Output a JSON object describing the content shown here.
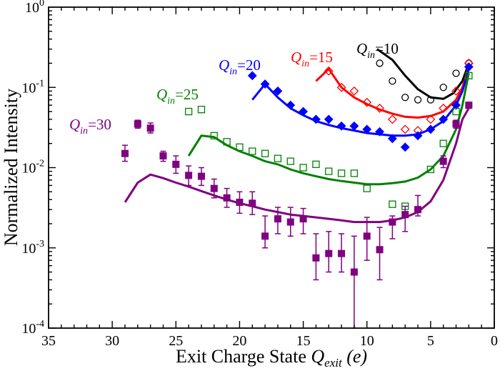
{
  "chart_data": {
    "type": "scatter",
    "xlabel": "Exit Charge State",
    "xlabel_symbol": "Q",
    "xlabel_subscript": "exit",
    "xlabel_unit": "(e)",
    "ylabel": "Normalized Intensity",
    "xlim": [
      35,
      0
    ],
    "ylim": [
      0.0001,
      1
    ],
    "yscale": "log",
    "x_ticks": [
      35,
      30,
      25,
      20,
      15,
      10,
      5,
      0
    ],
    "y_tick_labels": [
      {
        "value": 0.0001,
        "base": "10",
        "exp": "-4"
      },
      {
        "value": 0.001,
        "base": "10",
        "exp": "-3"
      },
      {
        "value": 0.01,
        "base": "10",
        "exp": "-2"
      },
      {
        "value": 0.1,
        "base": "10",
        "exp": "-1"
      },
      {
        "value": 1,
        "base": "10",
        "exp": "0"
      }
    ],
    "grid": false,
    "series": [
      {
        "name": "Q_in=10",
        "label_symbol": "Q",
        "label_sub": "in",
        "label_value": "=10",
        "color": "#000000",
        "marker": "open-circle",
        "points": [
          {
            "x": 9,
            "y": 0.2
          },
          {
            "x": 8,
            "y": 0.12
          },
          {
            "x": 7,
            "y": 0.075
          },
          {
            "x": 6,
            "y": 0.07
          },
          {
            "x": 5,
            "y": 0.07
          },
          {
            "x": 4,
            "y": 0.1
          },
          {
            "x": 3,
            "y": 0.15
          },
          {
            "x": 2,
            "y": 0.2
          }
        ],
        "curve": [
          {
            "x": 9.2,
            "y": 0.3
          },
          {
            "x": 8,
            "y": 0.22
          },
          {
            "x": 7,
            "y": 0.14
          },
          {
            "x": 6,
            "y": 0.095
          },
          {
            "x": 5,
            "y": 0.075
          },
          {
            "x": 4,
            "y": 0.072
          },
          {
            "x": 3.2,
            "y": 0.085
          },
          {
            "x": 2.5,
            "y": 0.12
          },
          {
            "x": 2,
            "y": 0.2
          }
        ]
      },
      {
        "name": "Q_in=15",
        "label_symbol": "Q",
        "label_sub": "in",
        "label_value": "=15",
        "color": "#ff0000",
        "marker": "open-diamond",
        "points": [
          {
            "x": 13,
            "y": 0.16
          },
          {
            "x": 12,
            "y": 0.1
          },
          {
            "x": 11,
            "y": 0.09
          },
          {
            "x": 10,
            "y": 0.065
          },
          {
            "x": 9,
            "y": 0.055
          },
          {
            "x": 8,
            "y": 0.04
          },
          {
            "x": 7,
            "y": 0.03
          },
          {
            "x": 6,
            "y": 0.029
          },
          {
            "x": 5,
            "y": 0.04
          },
          {
            "x": 4,
            "y": 0.055
          },
          {
            "x": 3,
            "y": 0.09
          },
          {
            "x": 2,
            "y": 0.2
          }
        ],
        "curve": [
          {
            "x": 14,
            "y": 0.12
          },
          {
            "x": 13,
            "y": 0.17
          },
          {
            "x": 12,
            "y": 0.1
          },
          {
            "x": 11,
            "y": 0.075
          },
          {
            "x": 10,
            "y": 0.062
          },
          {
            "x": 9,
            "y": 0.053
          },
          {
            "x": 8,
            "y": 0.047
          },
          {
            "x": 7,
            "y": 0.043
          },
          {
            "x": 6,
            "y": 0.042
          },
          {
            "x": 5,
            "y": 0.044
          },
          {
            "x": 4,
            "y": 0.05
          },
          {
            "x": 3,
            "y": 0.07
          },
          {
            "x": 2.5,
            "y": 0.1
          },
          {
            "x": 2,
            "y": 0.18
          }
        ]
      },
      {
        "name": "Q_in=20",
        "label_symbol": "Q",
        "label_sub": "in",
        "label_value": "=20",
        "color": "#0000ff",
        "marker": "filled-diamond",
        "points": [
          {
            "x": 19,
            "y": 0.14
          },
          {
            "x": 18,
            "y": 0.11
          },
          {
            "x": 17,
            "y": 0.09
          },
          {
            "x": 16,
            "y": 0.06
          },
          {
            "x": 15,
            "y": 0.05
          },
          {
            "x": 14,
            "y": 0.04
          },
          {
            "x": 13,
            "y": 0.04
          },
          {
            "x": 12,
            "y": 0.033
          },
          {
            "x": 11,
            "y": 0.033
          },
          {
            "x": 10,
            "y": 0.03
          },
          {
            "x": 9,
            "y": 0.028
          },
          {
            "x": 8,
            "y": 0.023
          },
          {
            "x": 7,
            "y": 0.018
          },
          {
            "x": 6,
            "y": 0.025
          },
          {
            "x": 5,
            "y": 0.03
          },
          {
            "x": 4,
            "y": 0.04
          },
          {
            "x": 3,
            "y": 0.06
          },
          {
            "x": 2,
            "y": 0.18
          }
        ],
        "curve": [
          {
            "x": 19,
            "y": 0.07
          },
          {
            "x": 18,
            "y": 0.11
          },
          {
            "x": 17,
            "y": 0.075
          },
          {
            "x": 16,
            "y": 0.055
          },
          {
            "x": 15,
            "y": 0.045
          },
          {
            "x": 14,
            "y": 0.038
          },
          {
            "x": 13,
            "y": 0.034
          },
          {
            "x": 12,
            "y": 0.031
          },
          {
            "x": 11,
            "y": 0.029
          },
          {
            "x": 10,
            "y": 0.027
          },
          {
            "x": 9,
            "y": 0.026
          },
          {
            "x": 8,
            "y": 0.025
          },
          {
            "x": 7,
            "y": 0.025
          },
          {
            "x": 6,
            "y": 0.026
          },
          {
            "x": 5,
            "y": 0.03
          },
          {
            "x": 4,
            "y": 0.038
          },
          {
            "x": 3,
            "y": 0.06
          },
          {
            "x": 2.5,
            "y": 0.09
          },
          {
            "x": 2,
            "y": 0.17
          }
        ]
      },
      {
        "name": "Q_in=25",
        "label_symbol": "Q",
        "label_sub": "in",
        "label_value": "=25",
        "color": "#008000",
        "marker": "open-square",
        "points": [
          {
            "x": 24,
            "y": 0.05
          },
          {
            "x": 23,
            "y": 0.053
          },
          {
            "x": 22,
            "y": 0.025
          },
          {
            "x": 21,
            "y": 0.021
          },
          {
            "x": 20,
            "y": 0.018
          },
          {
            "x": 19,
            "y": 0.016
          },
          {
            "x": 18,
            "y": 0.015
          },
          {
            "x": 17,
            "y": 0.013
          },
          {
            "x": 16,
            "y": 0.012
          },
          {
            "x": 15,
            "y": 0.01
          },
          {
            "x": 14,
            "y": 0.011
          },
          {
            "x": 13,
            "y": 0.009
          },
          {
            "x": 12,
            "y": 0.0085
          },
          {
            "x": 11,
            "y": 0.0085
          },
          {
            "x": 10,
            "y": 0.0055
          },
          {
            "x": 8,
            "y": 0.0035
          },
          {
            "x": 7,
            "y": 0.0033
          },
          {
            "x": 5,
            "y": 0.0095
          },
          {
            "x": 4,
            "y": 0.02
          },
          {
            "x": 3,
            "y": 0.05
          },
          {
            "x": 2,
            "y": 0.14
          }
        ],
        "curve": [
          {
            "x": 24,
            "y": 0.014
          },
          {
            "x": 23,
            "y": 0.025
          },
          {
            "x": 22,
            "y": 0.024
          },
          {
            "x": 21,
            "y": 0.019
          },
          {
            "x": 20,
            "y": 0.016
          },
          {
            "x": 19,
            "y": 0.014
          },
          {
            "x": 18,
            "y": 0.012
          },
          {
            "x": 17,
            "y": 0.011
          },
          {
            "x": 16,
            "y": 0.0095
          },
          {
            "x": 15,
            "y": 0.0085
          },
          {
            "x": 14,
            "y": 0.0078
          },
          {
            "x": 13,
            "y": 0.0072
          },
          {
            "x": 12,
            "y": 0.0068
          },
          {
            "x": 11,
            "y": 0.0065
          },
          {
            "x": 10,
            "y": 0.0062
          },
          {
            "x": 9,
            "y": 0.0062
          },
          {
            "x": 8,
            "y": 0.0064
          },
          {
            "x": 7,
            "y": 0.0067
          },
          {
            "x": 6,
            "y": 0.0075
          },
          {
            "x": 5,
            "y": 0.0095
          },
          {
            "x": 4,
            "y": 0.014
          },
          {
            "x": 3,
            "y": 0.03
          },
          {
            "x": 2.5,
            "y": 0.06
          },
          {
            "x": 2,
            "y": 0.15
          }
        ]
      },
      {
        "name": "Q_in=30",
        "label_symbol": "Q",
        "label_sub": "in",
        "label_value": "=30",
        "color": "#800080",
        "marker": "filled-square",
        "points": [
          {
            "x": 29,
            "y": 0.015,
            "lo": 0.012,
            "hi": 0.019
          },
          {
            "x": 28,
            "y": 0.035,
            "lo": 0.031,
            "hi": 0.039
          },
          {
            "x": 27,
            "y": 0.031,
            "lo": 0.027,
            "hi": 0.036
          },
          {
            "x": 26,
            "y": 0.014,
            "lo": 0.012,
            "hi": 0.016
          },
          {
            "x": 25,
            "y": 0.011,
            "lo": 0.0085,
            "hi": 0.014
          },
          {
            "x": 24,
            "y": 0.008,
            "lo": 0.006,
            "hi": 0.0105
          },
          {
            "x": 23,
            "y": 0.0078,
            "lo": 0.006,
            "hi": 0.01
          },
          {
            "x": 22,
            "y": 0.0055,
            "lo": 0.0042,
            "hi": 0.0072
          },
          {
            "x": 21,
            "y": 0.0042,
            "lo": 0.0032,
            "hi": 0.0055
          },
          {
            "x": 20,
            "y": 0.0037,
            "lo": 0.0027,
            "hi": 0.005
          },
          {
            "x": 19,
            "y": 0.0036,
            "lo": 0.0026,
            "hi": 0.005
          },
          {
            "x": 18,
            "y": 0.0014,
            "lo": 0.001,
            "hi": 0.0025
          },
          {
            "x": 17,
            "y": 0.0023,
            "lo": 0.0015,
            "hi": 0.0032
          },
          {
            "x": 16,
            "y": 0.0021,
            "lo": 0.0014,
            "hi": 0.0032
          },
          {
            "x": 15,
            "y": 0.0023,
            "lo": 0.0015,
            "hi": 0.0031
          },
          {
            "x": 14,
            "y": 0.00075,
            "lo": 0.0004,
            "hi": 0.0015
          },
          {
            "x": 13,
            "y": 0.00085,
            "lo": 0.0005,
            "hi": 0.0016
          },
          {
            "x": 12,
            "y": 0.00085,
            "lo": 0.0005,
            "hi": 0.0015
          },
          {
            "x": 11,
            "y": 0.0005,
            "lo": 0.0001,
            "hi": 0.0014
          },
          {
            "x": 10,
            "y": 0.0014,
            "lo": 0.0007,
            "hi": 0.0024
          },
          {
            "x": 9,
            "y": 0.00095,
            "lo": 0.0004,
            "hi": 0.0018
          },
          {
            "x": 8,
            "y": 0.0021,
            "lo": 0.0013,
            "hi": 0.0025
          },
          {
            "x": 7,
            "y": 0.0026,
            "lo": 0.0016,
            "hi": 0.0033
          },
          {
            "x": 6,
            "y": 0.003,
            "lo": 0.0025,
            "hi": 0.0045
          },
          {
            "x": 4,
            "y": 0.012,
            "lo": 0.01,
            "hi": 0.014
          },
          {
            "x": 3,
            "y": 0.035,
            "lo": 0.031,
            "hi": 0.039
          },
          {
            "x": 2,
            "y": 0.06,
            "lo": 0.055,
            "hi": 0.065
          }
        ],
        "curve": [
          {
            "x": 29,
            "y": 0.0037
          },
          {
            "x": 28,
            "y": 0.0065
          },
          {
            "x": 27,
            "y": 0.0082
          },
          {
            "x": 26,
            "y": 0.0074
          },
          {
            "x": 25,
            "y": 0.0065
          },
          {
            "x": 24,
            "y": 0.0058
          },
          {
            "x": 23,
            "y": 0.0051
          },
          {
            "x": 22,
            "y": 0.0045
          },
          {
            "x": 21,
            "y": 0.004
          },
          {
            "x": 20,
            "y": 0.0036
          },
          {
            "x": 19,
            "y": 0.0033
          },
          {
            "x": 18,
            "y": 0.003
          },
          {
            "x": 17,
            "y": 0.0028
          },
          {
            "x": 16,
            "y": 0.0026
          },
          {
            "x": 15,
            "y": 0.0025
          },
          {
            "x": 14,
            "y": 0.0024
          },
          {
            "x": 13,
            "y": 0.0023
          },
          {
            "x": 12,
            "y": 0.0022
          },
          {
            "x": 11,
            "y": 0.0021
          },
          {
            "x": 10,
            "y": 0.0021
          },
          {
            "x": 9,
            "y": 0.0021
          },
          {
            "x": 8,
            "y": 0.0022
          },
          {
            "x": 7,
            "y": 0.0024
          },
          {
            "x": 6,
            "y": 0.0028
          },
          {
            "x": 5,
            "y": 0.0038
          },
          {
            "x": 4,
            "y": 0.007
          },
          {
            "x": 3,
            "y": 0.02
          },
          {
            "x": 2.5,
            "y": 0.04
          },
          {
            "x": 2,
            "y": 0.055
          }
        ]
      }
    ]
  }
}
